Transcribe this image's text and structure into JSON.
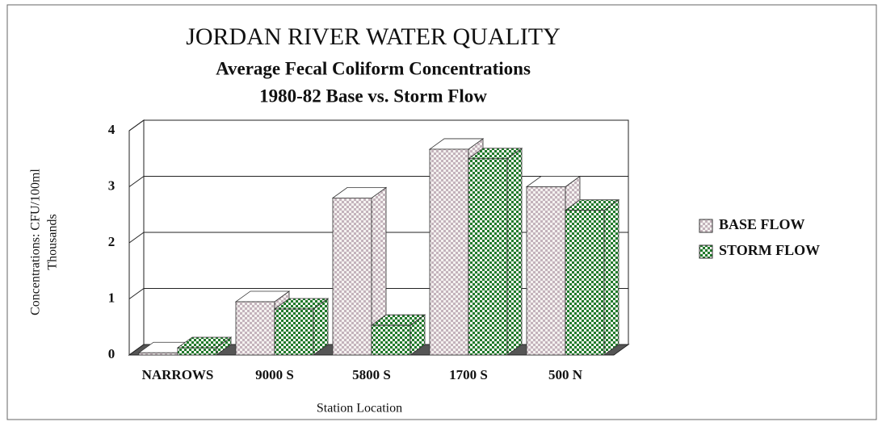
{
  "chart_data": {
    "type": "bar3d",
    "title": "JORDAN RIVER WATER QUALITY",
    "subtitle": [
      "Average Fecal Coliform Concentrations",
      "1980-82 Base vs. Storm Flow"
    ],
    "y_label": [
      "Concentrations: CFU/100ml",
      "Thousands"
    ],
    "x_label": "Station Location",
    "categories": [
      "NARROWS",
      "9000 S",
      "5800 S",
      "1700 S",
      "500 N"
    ],
    "series": [
      {
        "name": "BASE FLOW",
        "color": "#c4b3bc",
        "values": [
          0.04,
          0.95,
          2.8,
          3.67,
          3.0
        ]
      },
      {
        "name": "STORM FLOW",
        "color": "#1f7a2a",
        "values": [
          0.13,
          0.82,
          0.53,
          3.5,
          2.58
        ]
      }
    ],
    "ylim": [
      0,
      4
    ],
    "yticks": [
      0,
      1,
      2,
      3,
      4
    ],
    "grid": true,
    "legend": "right"
  }
}
